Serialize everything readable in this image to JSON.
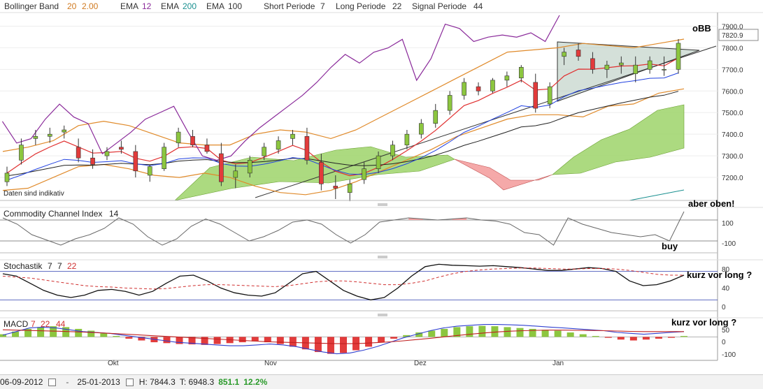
{
  "header": {
    "bollinger_label": "Bollinger Band",
    "bollinger_p1": "20",
    "bollinger_p2": "2.00",
    "ema1_label": "EMA",
    "ema1_val": "12",
    "ema2_label": "EMA",
    "ema2_val": "200",
    "ema3_label": "EMA",
    "ema3_val": "100",
    "short_label": "Short Periode",
    "short_val": "7",
    "long_label": "Long Periode",
    "long_val": "22",
    "signal_label": "Signal Periode",
    "signal_val": "44"
  },
  "colors": {
    "up": "#8cc63f",
    "down": "#e23b3b",
    "bollinger": "#e08a2a",
    "ema12": "#e03030",
    "ema200": "#1a9090",
    "ema100": "#222222",
    "tenkan": "#2040e0",
    "chikou": "#8a2a9a",
    "kumo_up": "#9ed46a",
    "kumo_down": "#f4a0a0",
    "triangle": "#b8ccc0"
  },
  "main_panel": {
    "note_label": "Daten sind indikativ",
    "last_price_label": "7820.9",
    "annotation": "oBB"
  },
  "cci_panel": {
    "title": "Commodity Channel Index",
    "period": "14",
    "annotation_top": "aber oben!",
    "annotation_bottom": "buy"
  },
  "stoch_panel": {
    "title": "Stochastik",
    "p1": "7",
    "p2": "7",
    "p3": "22",
    "annotation": "kurz vor long ?"
  },
  "macd_panel": {
    "title": "MACD",
    "p1": "7",
    "p2": "22",
    "p3": "44",
    "annotation": "kurz vor long ?"
  },
  "footer": {
    "start_date": "06-09-2012",
    "dash": "-",
    "end_date": "25-01-2013",
    "high_label": "H: 7844.3",
    "low_label": "T: 6948.3",
    "change": "851.1",
    "change_pct": "12.2%"
  },
  "chart_data": [
    {
      "type": "candlestick",
      "panel": "price",
      "ylim": [
        7100,
        7950
      ],
      "y_ticks": [
        "7900.0",
        "7800.0",
        "7700.0",
        "7600.0",
        "7500.0",
        "7400.0",
        "7300.0",
        "7200.0"
      ],
      "x_ticks": [
        "Okt",
        "Nov",
        "Dez",
        "Jan"
      ],
      "last_price": 7820.9,
      "series": [
        {
          "name": "Bollinger Band",
          "values": [
            [
              7140,
              7320
            ],
            [
              7150,
              7340
            ],
            [
              7200,
              7370
            ],
            [
              7250,
              7440
            ],
            [
              7260,
              7460
            ],
            [
              7240,
              7440
            ],
            [
              7210,
              7400
            ],
            [
              7200,
              7360
            ],
            [
              7220,
              7350
            ],
            [
              7200,
              7350
            ],
            [
              7160,
              7400
            ],
            [
              7130,
              7420
            ],
            [
              7120,
              7410
            ],
            [
              7140,
              7380
            ],
            [
              7180,
              7420
            ],
            [
              7230,
              7480
            ],
            [
              7280,
              7540
            ],
            [
              7330,
              7600
            ],
            [
              7390,
              7660
            ],
            [
              7430,
              7720
            ],
            [
              7470,
              7780
            ],
            [
              7490,
              7790
            ],
            [
              7490,
              7800
            ],
            [
              7480,
              7820
            ],
            [
              7530,
              7810
            ],
            [
              7540,
              7800
            ],
            [
              7590,
              7820
            ],
            [
              7610,
              7840
            ]
          ]
        }
      ],
      "candles_ohlc": [
        [
          7180,
          7250,
          7160,
          7220
        ],
        [
          7280,
          7380,
          7260,
          7350
        ],
        [
          7380,
          7420,
          7350,
          7390
        ],
        [
          7390,
          7430,
          7360,
          7400
        ],
        [
          7410,
          7440,
          7380,
          7420
        ],
        [
          7340,
          7380,
          7270,
          7290
        ],
        [
          7290,
          7330,
          7240,
          7260
        ],
        [
          7300,
          7340,
          7280,
          7320
        ],
        [
          7340,
          7370,
          7310,
          7330
        ],
        [
          7320,
          7350,
          7200,
          7230
        ],
        [
          7210,
          7260,
          7180,
          7250
        ],
        [
          7240,
          7360,
          7230,
          7340
        ],
        [
          7360,
          7430,
          7340,
          7410
        ],
        [
          7390,
          7420,
          7340,
          7350
        ],
        [
          7350,
          7380,
          7310,
          7320
        ],
        [
          7310,
          7360,
          7160,
          7180
        ],
        [
          7200,
          7260,
          7150,
          7230
        ],
        [
          7220,
          7300,
          7200,
          7280
        ],
        [
          7300,
          7360,
          7280,
          7340
        ],
        [
          7330,
          7390,
          7310,
          7370
        ],
        [
          7380,
          7420,
          7350,
          7400
        ],
        [
          7390,
          7430,
          7260,
          7280
        ],
        [
          7270,
          7310,
          7140,
          7170
        ],
        [
          7160,
          7210,
          7100,
          7150
        ],
        [
          7130,
          7190,
          7090,
          7170
        ],
        [
          7190,
          7270,
          7170,
          7240
        ],
        [
          7240,
          7320,
          7220,
          7300
        ],
        [
          7300,
          7370,
          7280,
          7350
        ],
        [
          7350,
          7420,
          7330,
          7400
        ],
        [
          7400,
          7470,
          7380,
          7450
        ],
        [
          7450,
          7540,
          7430,
          7510
        ],
        [
          7510,
          7600,
          7490,
          7580
        ],
        [
          7580,
          7660,
          7560,
          7640
        ],
        [
          7620,
          7640,
          7580,
          7600
        ],
        [
          7600,
          7660,
          7590,
          7650
        ],
        [
          7650,
          7690,
          7620,
          7670
        ],
        [
          7660,
          7720,
          7640,
          7710
        ],
        [
          7640,
          7680,
          7500,
          7520
        ],
        [
          7540,
          7640,
          7520,
          7620
        ],
        [
          7760,
          7800,
          7720,
          7780
        ],
        [
          7790,
          7820,
          7740,
          7760
        ],
        [
          7750,
          7780,
          7680,
          7700
        ],
        [
          7700,
          7740,
          7660,
          7720
        ],
        [
          7720,
          7760,
          7680,
          7730
        ],
        [
          7680,
          7760,
          7640,
          7720
        ],
        [
          7700,
          7760,
          7680,
          7740
        ],
        [
          7700,
          7760,
          7670,
          7700
        ],
        [
          7700,
          7840,
          7680,
          7821
        ]
      ]
    },
    {
      "type": "line",
      "panel": "cci",
      "title": "Commodity Channel Index",
      "y_ticks": [
        "100",
        "-100"
      ],
      "ylim": [
        -200,
        200
      ],
      "values": [
        120,
        60,
        -40,
        -90,
        -140,
        -80,
        -40,
        20,
        120,
        60,
        -60,
        -140,
        -80,
        40,
        110,
        60,
        -20,
        -100,
        -60,
        0,
        80,
        100,
        60,
        -40,
        -120,
        -40,
        80,
        100,
        120,
        110,
        100,
        110,
        120,
        100,
        90,
        60,
        -20,
        -40,
        -140,
        120,
        60,
        20,
        -20,
        -40,
        -60,
        -40,
        -100,
        180
      ]
    },
    {
      "type": "line",
      "panel": "stochastic",
      "title": "Stochastik",
      "y_ticks": [
        "80",
        "40",
        "0"
      ],
      "ylim": [
        0,
        100
      ],
      "series": [
        {
          "name": "%K",
          "values": [
            75,
            70,
            55,
            40,
            30,
            25,
            30,
            40,
            42,
            38,
            30,
            38,
            55,
            70,
            72,
            60,
            45,
            35,
            30,
            28,
            35,
            55,
            75,
            80,
            60,
            40,
            28,
            20,
            25,
            45,
            70,
            90,
            95,
            93,
            92,
            91,
            92,
            90,
            88,
            85,
            82,
            82,
            85,
            88,
            86,
            80,
            60,
            50,
            52,
            60,
            72
          ]
        },
        {
          "name": "%D",
          "values": [
            70,
            68,
            66,
            62,
            58,
            54,
            50,
            48,
            47,
            45,
            44,
            43,
            44,
            47,
            50,
            52,
            52,
            51,
            50,
            49,
            48,
            50,
            54,
            58,
            60,
            60,
            58,
            55,
            52,
            52,
            55,
            60,
            68,
            75,
            80,
            83,
            85,
            86,
            87,
            87,
            86,
            85,
            85,
            86,
            86,
            85,
            82,
            78,
            74,
            72,
            72
          ]
        }
      ]
    },
    {
      "type": "bar",
      "panel": "macd",
      "title": "MACD",
      "y_ticks": [
        "50",
        "0",
        "-100"
      ],
      "ylim": [
        -120,
        80
      ],
      "histogram": [
        15,
        30,
        45,
        55,
        60,
        55,
        45,
        35,
        20,
        5,
        -10,
        -20,
        -30,
        -35,
        -40,
        -42,
        -45,
        -40,
        -35,
        -30,
        -25,
        -30,
        -40,
        -55,
        -70,
        -85,
        -95,
        -90,
        -75,
        -55,
        -30,
        -10,
        10,
        25,
        35,
        45,
        55,
        60,
        62,
        60,
        55,
        50,
        45,
        40,
        35,
        25,
        15,
        5,
        -5,
        -15,
        -20,
        -15,
        -10,
        -5,
        5
      ],
      "series": [
        {
          "name": "MACD",
          "values": [
            10,
            30,
            50,
            55,
            50,
            40,
            30,
            25,
            20,
            10,
            0,
            -10,
            -20,
            -30,
            -35,
            -40,
            -45,
            -50,
            -50,
            -45,
            -40,
            -45,
            -55,
            -70,
            -85,
            -95,
            -90,
            -75,
            -55,
            -30,
            -5,
            15,
            35,
            50,
            60,
            65,
            70,
            70,
            68,
            65,
            60,
            55,
            50,
            45,
            40,
            35,
            25,
            20,
            15,
            20,
            25,
            30
          ]
        },
        {
          "name": "Signal",
          "values": [
            40,
            38,
            36,
            34,
            32,
            30,
            27,
            24,
            20,
            16,
            12,
            8,
            4,
            0,
            -4,
            -8,
            -12,
            -16,
            -20,
            -24,
            -28,
            -30,
            -32,
            -34,
            -36,
            -38,
            -38,
            -36,
            -32,
            -28,
            -22,
            -15,
            -8,
            0,
            8,
            15,
            22,
            28,
            32,
            35,
            37,
            38,
            38,
            37,
            36,
            35,
            33,
            31,
            30,
            30,
            30,
            30
          ]
        }
      ]
    }
  ]
}
